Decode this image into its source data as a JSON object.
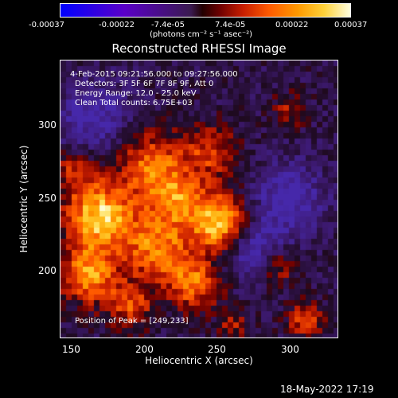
{
  "colorbar": {
    "ticks": [
      "-0.00037",
      "-0.00022",
      "-7.4e-05",
      "7.4e-05",
      "0.00022",
      "0.00037"
    ],
    "unit": "(photons cm⁻² s⁻¹ asec⁻²)"
  },
  "title": "Reconstructed RHESSI Image",
  "info": {
    "time": "4-Feb-2015 09:21:56.000 to 09:27:56.000",
    "detectors": "Detectors: 3F 5F 6F 7F 8F 9F, Att 0",
    "energy": "Energy Range: 12.0 - 25.0 keV",
    "clean": "Clean     Total counts: 6.75E+03"
  },
  "peak": "Position of Peak = [249,233]",
  "axes": {
    "xlabel": "Heliocentric X (arcsec)",
    "ylabel": "Heliocentric Y (arcsec)",
    "xticks": [
      "150",
      "200",
      "250",
      "300"
    ],
    "yticks": [
      "300",
      "250",
      "200"
    ]
  },
  "timestamp": "18-May-2022 17:19"
}
